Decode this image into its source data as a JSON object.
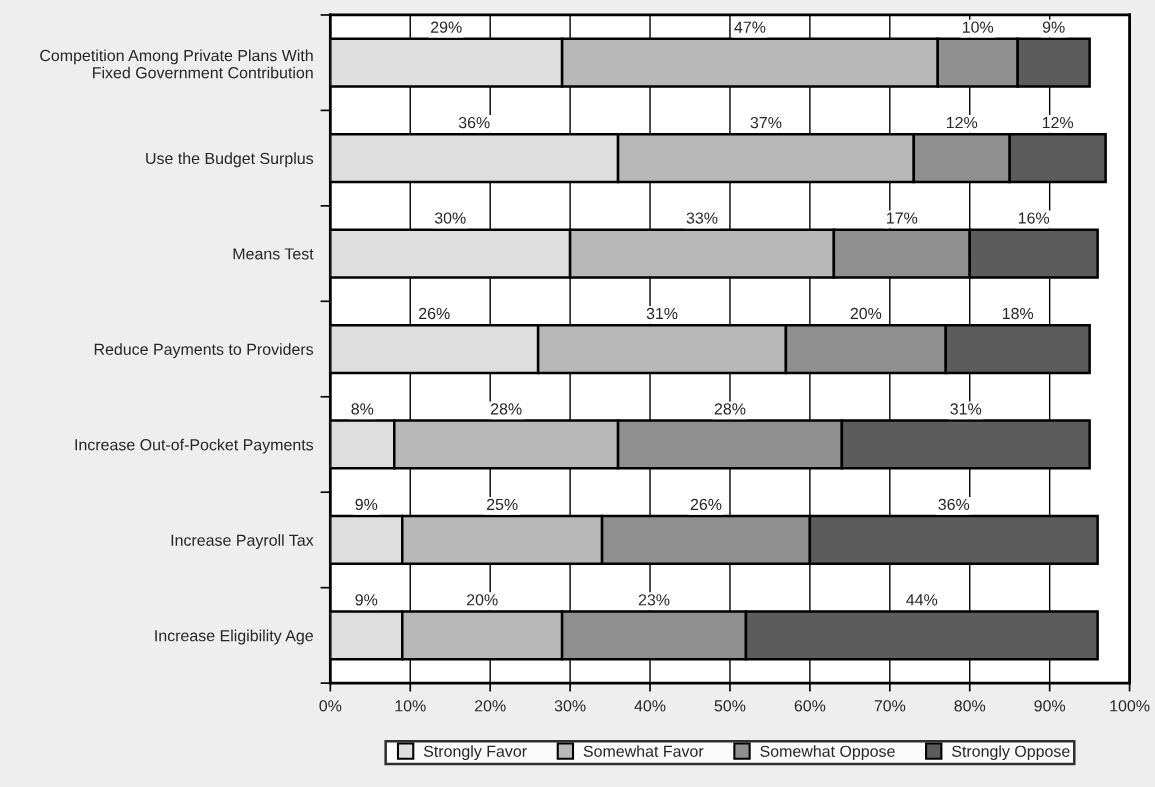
{
  "chart_data": {
    "type": "bar",
    "orientation": "horizontal",
    "stacked": true,
    "categories": [
      "Competition Among Private Plans With\nFixed Government Contribution",
      "Use the Budget Surplus",
      "Means Test",
      "Reduce Payments to Providers",
      "Increase Out-of-Pocket Payments",
      "Increase Payroll Tax",
      "Increase Eligibility Age"
    ],
    "series": [
      {
        "name": "Strongly Favor",
        "color": "#dedede",
        "values": [
          29,
          36,
          30,
          26,
          8,
          9,
          9
        ],
        "value_labels": [
          "29%",
          "36%",
          "30%",
          "26%",
          "8%",
          "9%",
          "9%"
        ]
      },
      {
        "name": "Somewhat Favor",
        "color": "#b8b8b8",
        "values": [
          47,
          37,
          33,
          31,
          28,
          25,
          20
        ],
        "value_labels": [
          "47%",
          "37%",
          "33%",
          "31%",
          "28%",
          "25%",
          "20%"
        ]
      },
      {
        "name": "Somewhat Oppose",
        "color": "#8f8f8f",
        "values": [
          10,
          12,
          17,
          20,
          28,
          26,
          23
        ],
        "value_labels": [
          "10%",
          "12%",
          "17%",
          "20%",
          "28%",
          "26%",
          "23%"
        ]
      },
      {
        "name": "Strongly Oppose",
        "color": "#5c5c5c",
        "values": [
          9,
          12,
          16,
          18,
          31,
          36,
          44
        ],
        "value_labels": [
          "9%",
          "12%",
          "16%",
          "18%",
          "31%",
          "36%",
          "44%"
        ]
      }
    ],
    "xlim": [
      0,
      100
    ],
    "xticks": [
      {
        "value": 0,
        "label": "0%"
      },
      {
        "value": 10,
        "label": "10%"
      },
      {
        "value": 20,
        "label": "20%"
      },
      {
        "value": 30,
        "label": "30%"
      },
      {
        "value": 40,
        "label": "40%"
      },
      {
        "value": 50,
        "label": "50%"
      },
      {
        "value": 60,
        "label": "60%"
      },
      {
        "value": 70,
        "label": "70%"
      },
      {
        "value": 80,
        "label": "80%"
      },
      {
        "value": 90,
        "label": "90%"
      },
      {
        "value": 100,
        "label": "100%"
      }
    ],
    "grid": "x",
    "legend": "bottom",
    "marker": "square"
  }
}
